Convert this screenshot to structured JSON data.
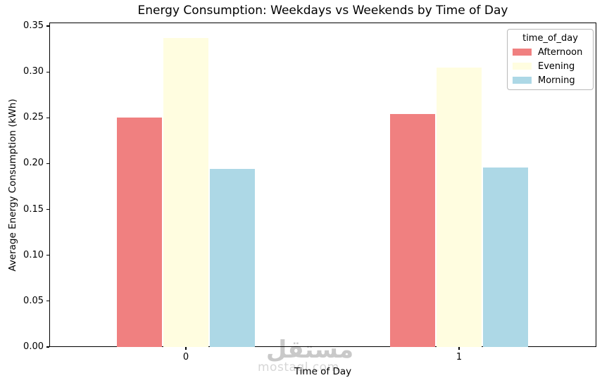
{
  "chart_data": {
    "type": "bar",
    "title": "Energy Consumption: Weekdays vs Weekends by Time of Day",
    "xlabel": "Time of Day",
    "ylabel": "Average Energy Consumption (kWh)",
    "categories": [
      "0",
      "1"
    ],
    "series": [
      {
        "name": "Afternoon",
        "color": "#F08080",
        "values": [
          0.25,
          0.254
        ]
      },
      {
        "name": "Evening",
        "color": "#FFFDE0",
        "values": [
          0.337,
          0.305
        ]
      },
      {
        "name": "Morning",
        "color": "#ADD8E6",
        "values": [
          0.194,
          0.196
        ]
      }
    ],
    "ylim": [
      0,
      0.35
    ],
    "y_ticks": [
      "0.00",
      "0.05",
      "0.10",
      "0.15",
      "0.20",
      "0.25",
      "0.30",
      "0.35"
    ],
    "x_ticks": [
      "0",
      "1"
    ],
    "grid": false,
    "legend": {
      "title": "time_of_day",
      "position": "upper right"
    }
  },
  "watermark": {
    "arabic": "مستقل",
    "latin": "mostaql.com"
  }
}
